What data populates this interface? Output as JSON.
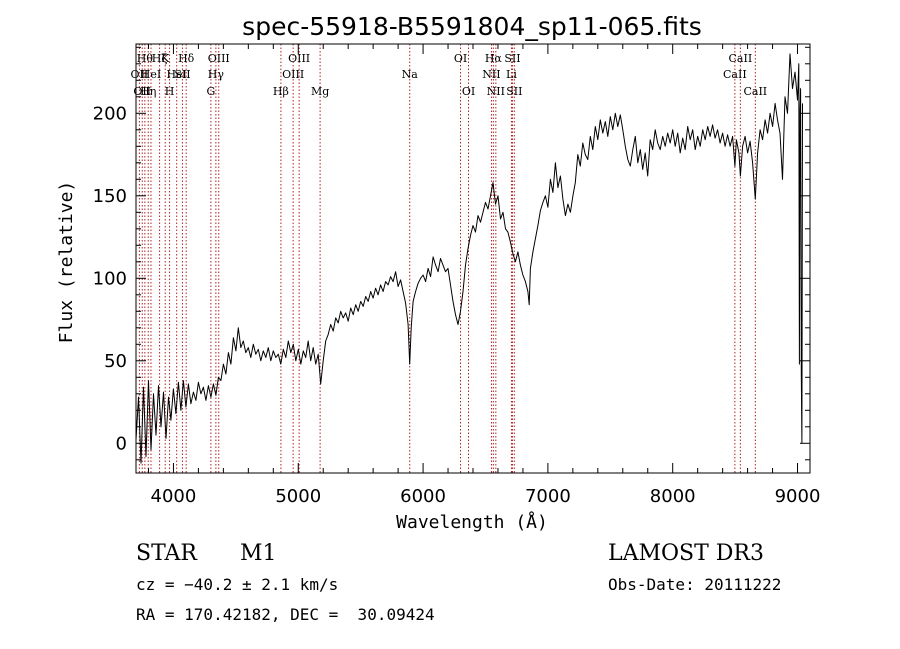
{
  "chart_data": {
    "type": "line",
    "title": "spec-55918-B5591804_sp11-065.fits",
    "xlabel": "Wavelength (Å)",
    "ylabel": "Flux (relative)",
    "xlim": [
      3700,
      9100
    ],
    "ylim": [
      -18,
      242
    ],
    "x_ticks": [
      4000,
      5000,
      6000,
      7000,
      8000,
      9000
    ],
    "x_tick_labels": [
      "4000",
      "5000",
      "6000",
      "7000",
      "8000",
      "9000"
    ],
    "y_ticks": [
      0,
      50,
      100,
      150,
      200
    ],
    "y_tick_labels": [
      "0",
      "50",
      "100",
      "150",
      "200"
    ],
    "grid": false,
    "line_color": "#000000",
    "marker_color": "#b22222",
    "spectral_lines": [
      {
        "wavelength": 3727,
        "label": "OII",
        "row": 2
      },
      {
        "wavelength": 3750,
        "label": "OII",
        "row": 3
      },
      {
        "wavelength": 3771,
        "label": "Hθ",
        "row": 1
      },
      {
        "wavelength": 3798,
        "label": "Hη",
        "row": 3
      },
      {
        "wavelength": 3820,
        "label": "HeI",
        "row": 2
      },
      {
        "wavelength": 3889,
        "label": "Hζ",
        "row": 1
      },
      {
        "wavelength": 3934,
        "label": "K",
        "row": 1
      },
      {
        "wavelength": 3969,
        "label": "H",
        "row": 3
      },
      {
        "wavelength": 4026,
        "label": "HeI",
        "row": 2
      },
      {
        "wavelength": 4072,
        "label": "SII",
        "row": 2
      },
      {
        "wavelength": 4102,
        "label": "Hδ",
        "row": 1
      },
      {
        "wavelength": 4300,
        "label": "G",
        "row": 3
      },
      {
        "wavelength": 4340,
        "label": "Hγ",
        "row": 2
      },
      {
        "wavelength": 4363,
        "label": "OIII",
        "row": 1
      },
      {
        "wavelength": 4861,
        "label": "Hβ",
        "row": 3
      },
      {
        "wavelength": 4959,
        "label": "OIII",
        "row": 2
      },
      {
        "wavelength": 5007,
        "label": "OIII",
        "row": 1
      },
      {
        "wavelength": 5175,
        "label": "Mg",
        "row": 3
      },
      {
        "wavelength": 5893,
        "label": "Na",
        "row": 2
      },
      {
        "wavelength": 6300,
        "label": "OI",
        "row": 1
      },
      {
        "wavelength": 6364,
        "label": "OI",
        "row": 3
      },
      {
        "wavelength": 6548,
        "label": "NII",
        "row": 2
      },
      {
        "wavelength": 6563,
        "label": "Hα",
        "row": 1
      },
      {
        "wavelength": 6583,
        "label": "NII",
        "row": 3
      },
      {
        "wavelength": 6708,
        "label": "Li",
        "row": 2
      },
      {
        "wavelength": 6716,
        "label": "SII",
        "row": 1
      },
      {
        "wavelength": 6731,
        "label": "SII",
        "row": 3
      },
      {
        "wavelength": 8498,
        "label": "CaII",
        "row": 2
      },
      {
        "wavelength": 8542,
        "label": "CaII",
        "row": 1
      },
      {
        "wavelength": 8662,
        "label": "CaII",
        "row": 3
      }
    ],
    "series": [
      {
        "name": "flux",
        "points": [
          [
            3700,
            2
          ],
          [
            3720,
            28
          ],
          [
            3740,
            -12
          ],
          [
            3760,
            34
          ],
          [
            3780,
            -8
          ],
          [
            3800,
            38
          ],
          [
            3820,
            -4
          ],
          [
            3840,
            30
          ],
          [
            3860,
            5
          ],
          [
            3880,
            35
          ],
          [
            3900,
            10
          ],
          [
            3920,
            31
          ],
          [
            3940,
            3
          ],
          [
            3960,
            28
          ],
          [
            3980,
            14
          ],
          [
            4000,
            33
          ],
          [
            4020,
            18
          ],
          [
            4040,
            37
          ],
          [
            4060,
            20
          ],
          [
            4080,
            38
          ],
          [
            4100,
            22
          ],
          [
            4120,
            36
          ],
          [
            4140,
            24
          ],
          [
            4160,
            31
          ],
          [
            4180,
            26
          ],
          [
            4200,
            37
          ],
          [
            4220,
            30
          ],
          [
            4240,
            34
          ],
          [
            4260,
            26
          ],
          [
            4280,
            35
          ],
          [
            4300,
            28
          ],
          [
            4320,
            36
          ],
          [
            4340,
            29
          ],
          [
            4360,
            40
          ],
          [
            4380,
            38
          ],
          [
            4400,
            48
          ],
          [
            4420,
            42
          ],
          [
            4440,
            55
          ],
          [
            4460,
            48
          ],
          [
            4480,
            64
          ],
          [
            4500,
            56
          ],
          [
            4520,
            70
          ],
          [
            4540,
            58
          ],
          [
            4560,
            62
          ],
          [
            4580,
            55
          ],
          [
            4600,
            58
          ],
          [
            4620,
            52
          ],
          [
            4640,
            60
          ],
          [
            4660,
            54
          ],
          [
            4680,
            57
          ],
          [
            4700,
            50
          ],
          [
            4720,
            56
          ],
          [
            4740,
            52
          ],
          [
            4760,
            58
          ],
          [
            4780,
            50
          ],
          [
            4800,
            56
          ],
          [
            4820,
            52
          ],
          [
            4840,
            54
          ],
          [
            4860,
            48
          ],
          [
            4880,
            57
          ],
          [
            4900,
            52
          ],
          [
            4920,
            62
          ],
          [
            4940,
            55
          ],
          [
            4960,
            60
          ],
          [
            4980,
            50
          ],
          [
            5000,
            57
          ],
          [
            5020,
            48
          ],
          [
            5040,
            56
          ],
          [
            5060,
            52
          ],
          [
            5080,
            62
          ],
          [
            5100,
            50
          ],
          [
            5120,
            58
          ],
          [
            5140,
            48
          ],
          [
            5160,
            54
          ],
          [
            5180,
            36
          ],
          [
            5200,
            50
          ],
          [
            5220,
            62
          ],
          [
            5240,
            66
          ],
          [
            5260,
            72
          ],
          [
            5280,
            68
          ],
          [
            5300,
            76
          ],
          [
            5320,
            73
          ],
          [
            5340,
            80
          ],
          [
            5360,
            76
          ],
          [
            5380,
            79
          ],
          [
            5400,
            74
          ],
          [
            5420,
            82
          ],
          [
            5440,
            78
          ],
          [
            5460,
            84
          ],
          [
            5480,
            80
          ],
          [
            5500,
            86
          ],
          [
            5520,
            83
          ],
          [
            5540,
            89
          ],
          [
            5560,
            86
          ],
          [
            5580,
            92
          ],
          [
            5600,
            88
          ],
          [
            5620,
            94
          ],
          [
            5640,
            90
          ],
          [
            5660,
            96
          ],
          [
            5680,
            92
          ],
          [
            5700,
            98
          ],
          [
            5720,
            96
          ],
          [
            5740,
            101
          ],
          [
            5760,
            98
          ],
          [
            5780,
            104
          ],
          [
            5800,
            95
          ],
          [
            5820,
            99
          ],
          [
            5840,
            92
          ],
          [
            5860,
            85
          ],
          [
            5880,
            72
          ],
          [
            5893,
            48
          ],
          [
            5905,
            70
          ],
          [
            5920,
            86
          ],
          [
            5940,
            92
          ],
          [
            5960,
            97
          ],
          [
            5980,
            100
          ],
          [
            6000,
            102
          ],
          [
            6020,
            98
          ],
          [
            6040,
            106
          ],
          [
            6060,
            101
          ],
          [
            6080,
            113
          ],
          [
            6100,
            108
          ],
          [
            6120,
            104
          ],
          [
            6140,
            112
          ],
          [
            6160,
            108
          ],
          [
            6180,
            104
          ],
          [
            6200,
            106
          ],
          [
            6220,
            96
          ],
          [
            6240,
            86
          ],
          [
            6260,
            78
          ],
          [
            6280,
            72
          ],
          [
            6300,
            80
          ],
          [
            6320,
            92
          ],
          [
            6340,
            108
          ],
          [
            6360,
            118
          ],
          [
            6380,
            126
          ],
          [
            6400,
            132
          ],
          [
            6420,
            128
          ],
          [
            6440,
            138
          ],
          [
            6460,
            134
          ],
          [
            6480,
            140
          ],
          [
            6500,
            146
          ],
          [
            6520,
            142
          ],
          [
            6540,
            150
          ],
          [
            6560,
            158
          ],
          [
            6580,
            145
          ],
          [
            6600,
            150
          ],
          [
            6620,
            136
          ],
          [
            6640,
            140
          ],
          [
            6660,
            130
          ],
          [
            6680,
            128
          ],
          [
            6700,
            122
          ],
          [
            6720,
            115
          ],
          [
            6740,
            110
          ],
          [
            6760,
            116
          ],
          [
            6780,
            108
          ],
          [
            6800,
            102
          ],
          [
            6820,
            98
          ],
          [
            6840,
            92
          ],
          [
            6850,
            84
          ],
          [
            6860,
            106
          ],
          [
            6880,
            116
          ],
          [
            6900,
            124
          ],
          [
            6920,
            132
          ],
          [
            6940,
            141
          ],
          [
            6960,
            146
          ],
          [
            6980,
            150
          ],
          [
            7000,
            143
          ],
          [
            7020,
            160
          ],
          [
            7040,
            152
          ],
          [
            7060,
            170
          ],
          [
            7080,
            155
          ],
          [
            7100,
            162
          ],
          [
            7120,
            148
          ],
          [
            7140,
            138
          ],
          [
            7160,
            145
          ],
          [
            7180,
            140
          ],
          [
            7200,
            150
          ],
          [
            7220,
            158
          ],
          [
            7240,
            175
          ],
          [
            7260,
            168
          ],
          [
            7280,
            182
          ],
          [
            7300,
            175
          ],
          [
            7320,
            172
          ],
          [
            7340,
            186
          ],
          [
            7360,
            178
          ],
          [
            7380,
            192
          ],
          [
            7400,
            184
          ],
          [
            7420,
            196
          ],
          [
            7440,
            188
          ],
          [
            7460,
            195
          ],
          [
            7480,
            186
          ],
          [
            7500,
            198
          ],
          [
            7520,
            190
          ],
          [
            7540,
            200
          ],
          [
            7560,
            192
          ],
          [
            7580,
            199
          ],
          [
            7600,
            190
          ],
          [
            7620,
            180
          ],
          [
            7640,
            172
          ],
          [
            7660,
            168
          ],
          [
            7680,
            178
          ],
          [
            7700,
            186
          ],
          [
            7720,
            170
          ],
          [
            7740,
            178
          ],
          [
            7760,
            166
          ],
          [
            7780,
            176
          ],
          [
            7800,
            162
          ],
          [
            7820,
            184
          ],
          [
            7840,
            178
          ],
          [
            7860,
            190
          ],
          [
            7880,
            182
          ],
          [
            7900,
            178
          ],
          [
            7920,
            186
          ],
          [
            7940,
            180
          ],
          [
            7960,
            188
          ],
          [
            7980,
            182
          ],
          [
            8000,
            190
          ],
          [
            8020,
            180
          ],
          [
            8040,
            188
          ],
          [
            8060,
            176
          ],
          [
            8080,
            185
          ],
          [
            8100,
            178
          ],
          [
            8120,
            192
          ],
          [
            8140,
            184
          ],
          [
            8160,
            190
          ],
          [
            8180,
            178
          ],
          [
            8200,
            186
          ],
          [
            8220,
            180
          ],
          [
            8240,
            190
          ],
          [
            8260,
            184
          ],
          [
            8280,
            192
          ],
          [
            8300,
            186
          ],
          [
            8320,
            193
          ],
          [
            8340,
            185
          ],
          [
            8360,
            190
          ],
          [
            8380,
            182
          ],
          [
            8400,
            188
          ],
          [
            8420,
            180
          ],
          [
            8440,
            187
          ],
          [
            8460,
            180
          ],
          [
            8480,
            186
          ],
          [
            8498,
            168
          ],
          [
            8510,
            184
          ],
          [
            8530,
            176
          ],
          [
            8542,
            162
          ],
          [
            8560,
            180
          ],
          [
            8580,
            186
          ],
          [
            8600,
            176
          ],
          [
            8620,
            183
          ],
          [
            8640,
            170
          ],
          [
            8662,
            148
          ],
          [
            8680,
            176
          ],
          [
            8700,
            190
          ],
          [
            8720,
            184
          ],
          [
            8740,
            196
          ],
          [
            8760,
            188
          ],
          [
            8780,
            200
          ],
          [
            8800,
            192
          ],
          [
            8820,
            206
          ],
          [
            8840,
            196
          ],
          [
            8860,
            188
          ],
          [
            8880,
            160
          ],
          [
            8900,
            210
          ],
          [
            8920,
            200
          ],
          [
            8940,
            236
          ],
          [
            8960,
            215
          ],
          [
            8980,
            225
          ],
          [
            9000,
            208
          ],
          [
            9010,
            230
          ],
          [
            9015,
            48
          ],
          [
            9020,
            202
          ],
          [
            9025,
            215
          ],
          [
            9030,
            42
          ],
          [
            9035,
            0
          ],
          [
            9040,
            206
          ]
        ]
      }
    ]
  },
  "footer": {
    "object_class": "STAR",
    "subclass": "M1",
    "redshift_line": "cz = −40.2 ± 2.1 km/s",
    "coords_line": "RA = 170.42182, DEC =  30.09424",
    "survey": "LAMOST DR3",
    "obs_date": "Obs-Date: 20111222"
  }
}
